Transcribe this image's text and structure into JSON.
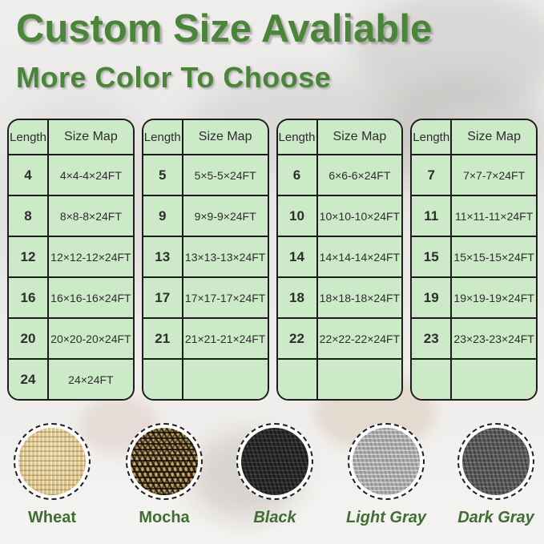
{
  "title": "Custom Size Avaliable",
  "subtitle": "More Color To Choose",
  "colors": {
    "title_green": "#4a853a",
    "label_green": "#3f6d33",
    "cell_green": "#cdeac8",
    "table_border": "#1c1c1c"
  },
  "tables": [
    {
      "headers": [
        "Length",
        "Size Map"
      ],
      "rows": [
        [
          "4",
          "4×4-4×24FT"
        ],
        [
          "8",
          "8×8-8×24FT"
        ],
        [
          "12",
          "12×12-12×24FT"
        ],
        [
          "16",
          "16×16-16×24FT"
        ],
        [
          "20",
          "20×20-20×24FT"
        ],
        [
          "24",
          "24×24FT"
        ]
      ]
    },
    {
      "headers": [
        "Length",
        "Size Map"
      ],
      "rows": [
        [
          "5",
          "5×5-5×24FT"
        ],
        [
          "9",
          "9×9-9×24FT"
        ],
        [
          "13",
          "13×13-13×24FT"
        ],
        [
          "17",
          "17×17-17×24FT"
        ],
        [
          "21",
          "21×21-21×24FT"
        ],
        [
          "",
          ""
        ]
      ]
    },
    {
      "headers": [
        "Length",
        "Size Map"
      ],
      "rows": [
        [
          "6",
          "6×6-6×24FT"
        ],
        [
          "10",
          "10×10-10×24FT"
        ],
        [
          "14",
          "14×14-14×24FT"
        ],
        [
          "18",
          "18×18-18×24FT"
        ],
        [
          "22",
          "22×22-22×24FT"
        ],
        [
          "",
          ""
        ]
      ]
    },
    {
      "headers": [
        "Length",
        "Size Map"
      ],
      "rows": [
        [
          "7",
          "7×7-7×24FT"
        ],
        [
          "11",
          "11×11-11×24FT"
        ],
        [
          "15",
          "15×15-15×24FT"
        ],
        [
          "19",
          "19×19-19×24FT"
        ],
        [
          "23",
          "23×23-23×24FT"
        ],
        [
          "",
          ""
        ]
      ]
    }
  ],
  "swatches": [
    {
      "name": "Wheat",
      "italic": false,
      "base": "#d6bd85"
    },
    {
      "name": "Mocha",
      "italic": false,
      "base": "#c7a566"
    },
    {
      "name": "Black",
      "italic": true,
      "base": "#2e2e2e"
    },
    {
      "name": "Light Gray",
      "italic": true,
      "base": "#aeaeae"
    },
    {
      "name": "Dark Gray",
      "italic": true,
      "base": "#5e5e5e"
    }
  ]
}
